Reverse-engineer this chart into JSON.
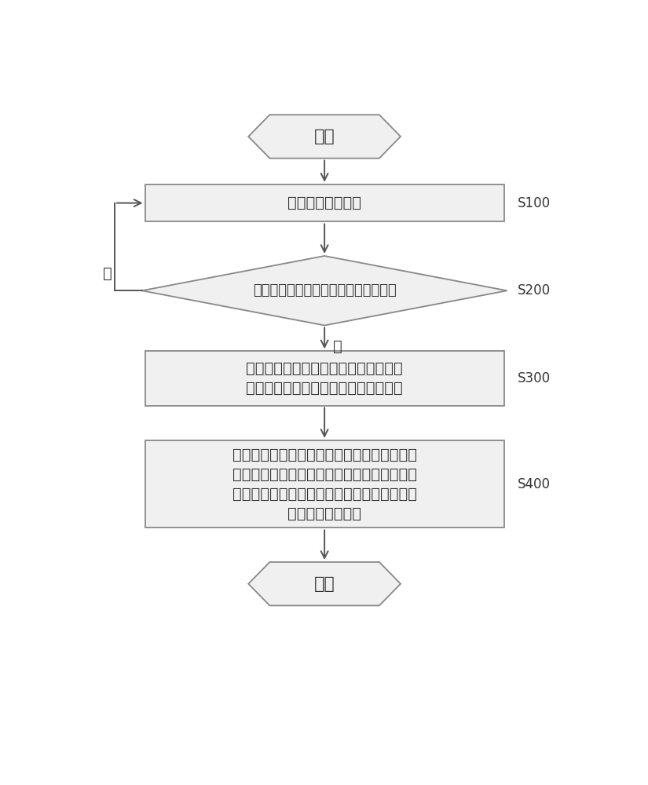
{
  "bg_color": "#ffffff",
  "text_color": "#333333",
  "shape_fill": "#f0f0f0",
  "shape_edge": "#888888",
  "arrow_color": "#555555",
  "start_text": "开始",
  "end_text": "结束",
  "box1_text": "接收节能控制信号",
  "box1_label": "S100",
  "diamond_text": "判断所述燃气热水器是否处于工作状态",
  "diamond_label": "S200",
  "box2_line1": "计算维持所述燃气热水器工作的工作临",
  "box2_line2": "界点对应的最小水流量和最小燃气流量",
  "box2_label": "S300",
  "box3_line1": "根据所述节能控制信号控制水流调节阀调节水",
  "box3_line2": "流量至工作临界点对应的最小水流量，并控制",
  "box3_line3": "所述燃气调节阀调节燃气流量至工作临界点对",
  "box3_line4": "应的最小燃气流量",
  "box3_label": "S400",
  "yes_label": "是",
  "no_label": "否",
  "font_size_main": 16,
  "font_size_box": 14,
  "font_size_diamond": 13,
  "font_size_label": 12
}
